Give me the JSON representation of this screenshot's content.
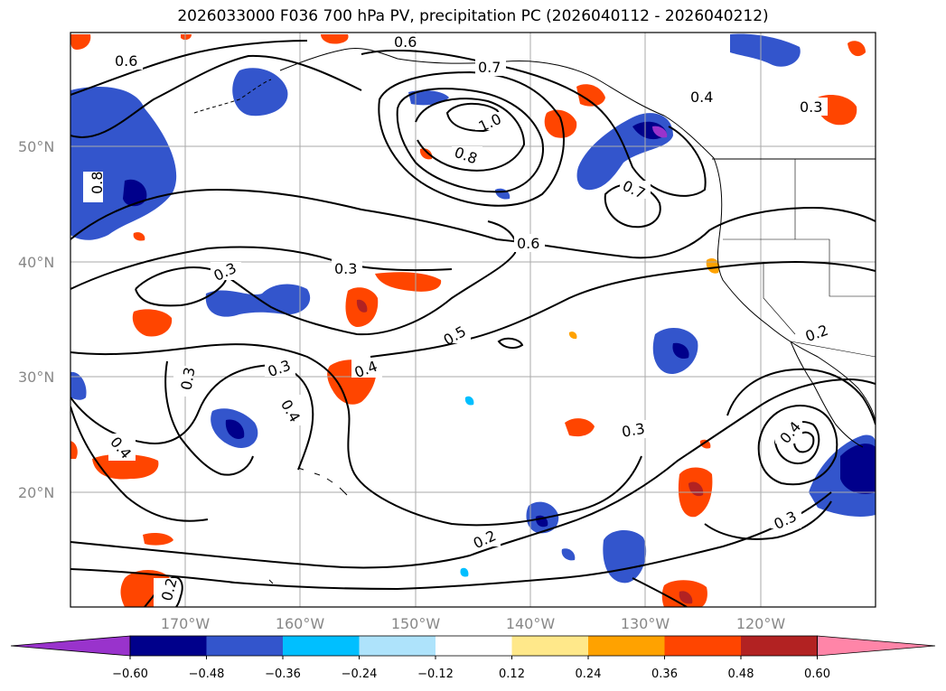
{
  "title": "2026033000 F036 700 hPa PV, precipitation PC (2026040112 - 2026040212)",
  "lat_labels": [
    "50°N",
    "40°N",
    "30°N",
    "20°N"
  ],
  "lon_labels": [
    "170°W",
    "160°W",
    "150°W",
    "140°W",
    "130°W",
    "120°W"
  ],
  "colorbar": {
    "tick_labels": [
      "−0.60",
      "−0.48",
      "−0.36",
      "−0.24",
      "−0.12",
      "0.12",
      "0.24",
      "0.36",
      "0.48",
      "0.60"
    ],
    "colors": [
      "#9933cc",
      "#00008b",
      "#3355cc",
      "#00bfff",
      "#aee3fb",
      "#ffffff",
      "#ffe88a",
      "#ffa200",
      "#ff4500",
      "#b22222",
      "#ff85a8"
    ]
  },
  "contour_labels": [
    "0.6",
    "0.6",
    "0.7",
    "1.0",
    "0.8",
    "0.4",
    "0.3",
    "0.7",
    "0.8",
    "0.6",
    "0.3",
    "0.3",
    "0.5",
    "0.3",
    "0.4",
    "0.3",
    "0.4",
    "0.3",
    "0.2",
    "0.4",
    "0.3",
    "0.2",
    "0.2",
    "0.4"
  ],
  "colors": {
    "graticule": "#aaaaaa",
    "contour": "#000000",
    "coast": "#000000",
    "axis_text": "#888888"
  }
}
